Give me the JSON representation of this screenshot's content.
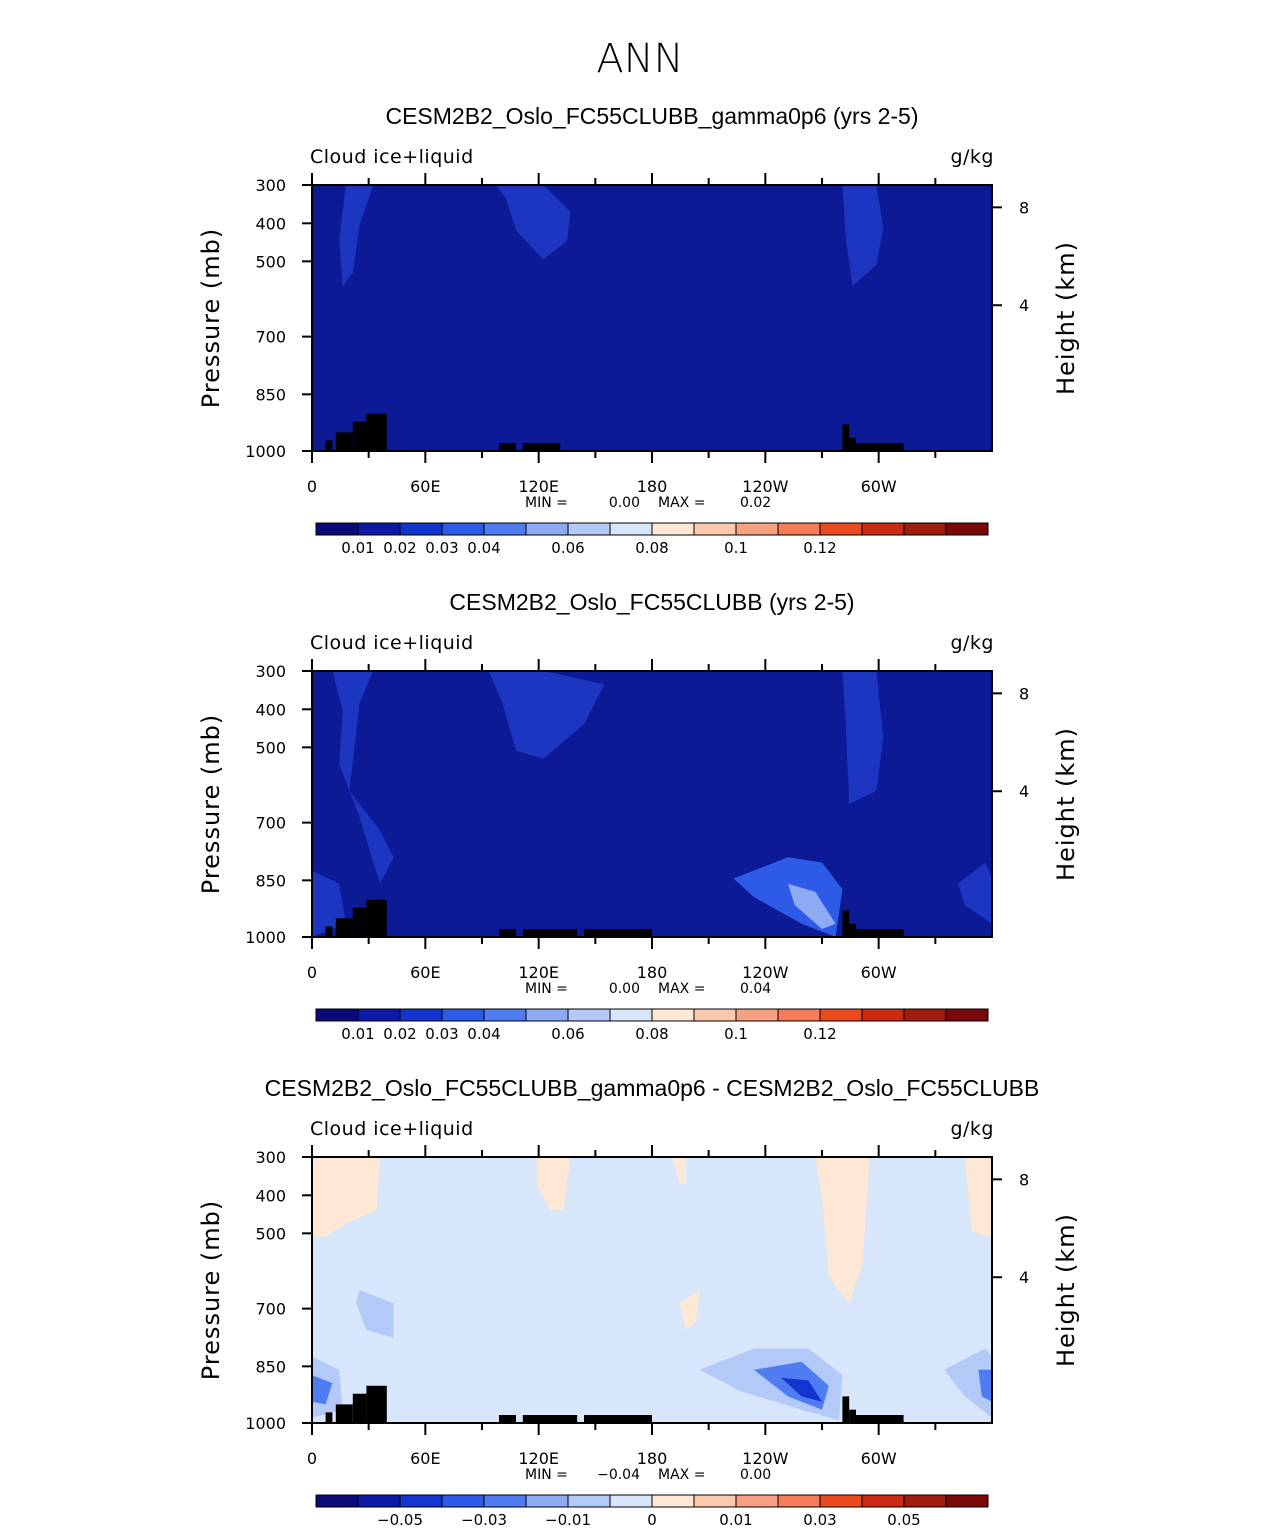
{
  "main_title": "ANN",
  "chart_data": [
    {
      "type": "heatmap",
      "title": "CESM2B2_Oslo_FC55CLUBB_gamma0p6 (yrs 2-5)",
      "variable": "Cloud ice+liquid",
      "units": "g/kg",
      "xlabel": "",
      "ylabel": "Pressure (mb)",
      "y2label": "Height (km)",
      "x_ticks": [
        "0",
        "60E",
        "120E",
        "180",
        "120W",
        "60W"
      ],
      "y_ticks": [
        "300",
        "400",
        "500",
        "700",
        "850",
        "1000"
      ],
      "y2_ticks": [
        "8",
        "4"
      ],
      "min_text": "MIN =",
      "min_value": "0.00",
      "max_text": "MAX =",
      "max_value": "0.02",
      "background_color": "#0d1a96",
      "colorbar": {
        "colors": [
          "#0a0a78",
          "#0c1aa5",
          "#1234cf",
          "#2e5ae8",
          "#4f7cf0",
          "#8eaaf2",
          "#b3c9f7",
          "#d8e6fb",
          "#fde8d6",
          "#fbc9ae",
          "#f7a183",
          "#f47c57",
          "#eb4a21",
          "#cc2a12",
          "#a01c0c",
          "#7a0a0a"
        ],
        "labels": [
          "0.01",
          "0.02",
          "0.03",
          "0.04",
          "0.06",
          "0.08",
          "0.1",
          "0.12"
        ]
      },
      "shapes": [
        {
          "color": "#1d36c2",
          "pts": [
            [
              0.05,
              0
            ],
            [
              0.09,
              0
            ],
            [
              0.07,
              0.15
            ],
            [
              0.06,
              0.33
            ],
            [
              0.045,
              0.38
            ],
            [
              0.04,
              0.2
            ]
          ]
        },
        {
          "color": "#1d36c2",
          "pts": [
            [
              0.27,
              0
            ],
            [
              0.34,
              0
            ],
            [
              0.38,
              0.1
            ],
            [
              0.375,
              0.21
            ],
            [
              0.34,
              0.28
            ],
            [
              0.3,
              0.17
            ],
            [
              0.285,
              0.05
            ]
          ]
        },
        {
          "color": "#1d36c2",
          "pts": [
            [
              0.78,
              0
            ],
            [
              0.83,
              0
            ],
            [
              0.84,
              0.16
            ],
            [
              0.83,
              0.3
            ],
            [
              0.795,
              0.38
            ],
            [
              0.785,
              0.2
            ]
          ]
        }
      ],
      "terrain": [
        [
          0.02,
          0.03,
          0.04
        ],
        [
          0.035,
          0.06,
          0.07
        ],
        [
          0.06,
          0.08,
          0.11
        ],
        [
          0.08,
          0.11,
          0.14
        ],
        [
          0.275,
          0.3,
          0.03
        ],
        [
          0.31,
          0.365,
          0.03
        ],
        [
          0.78,
          0.79,
          0.1
        ],
        [
          0.79,
          0.8,
          0.05
        ],
        [
          0.8,
          0.87,
          0.03
        ]
      ]
    },
    {
      "type": "heatmap",
      "title": "CESM2B2_Oslo_FC55CLUBB (yrs 2-5)",
      "variable": "Cloud ice+liquid",
      "units": "g/kg",
      "xlabel": "",
      "ylabel": "Pressure (mb)",
      "y2label": "Height (km)",
      "x_ticks": [
        "0",
        "60E",
        "120E",
        "180",
        "120W",
        "60W"
      ],
      "y_ticks": [
        "300",
        "400",
        "500",
        "700",
        "850",
        "1000"
      ],
      "y2_ticks": [
        "8",
        "4"
      ],
      "min_text": "MIN =",
      "min_value": "0.00",
      "max_text": "MAX =",
      "max_value": "0.04",
      "background_color": "#0d1a96",
      "colorbar": {
        "colors": [
          "#0a0a78",
          "#0c1aa5",
          "#1234cf",
          "#2e5ae8",
          "#4f7cf0",
          "#8eaaf2",
          "#b3c9f7",
          "#d8e6fb",
          "#fde8d6",
          "#fbc9ae",
          "#f7a183",
          "#f47c57",
          "#eb4a21",
          "#cc2a12",
          "#a01c0c",
          "#7a0a0a"
        ],
        "labels": [
          "0.01",
          "0.02",
          "0.03",
          "0.04",
          "0.06",
          "0.08",
          "0.1",
          "0.12"
        ]
      },
      "shapes": [
        {
          "color": "#1d36c2",
          "pts": [
            [
              0.03,
              0
            ],
            [
              0.09,
              0
            ],
            [
              0.07,
              0.12
            ],
            [
              0.055,
              0.45
            ],
            [
              0.1,
              0.6
            ],
            [
              0.12,
              0.7
            ],
            [
              0.1,
              0.8
            ],
            [
              0.07,
              0.55
            ],
            [
              0.04,
              0.35
            ],
            [
              0.045,
              0.15
            ]
          ]
        },
        {
          "color": "#1d36c2",
          "pts": [
            [
              0.26,
              0
            ],
            [
              0.34,
              0
            ],
            [
              0.43,
              0.05
            ],
            [
              0.4,
              0.2
            ],
            [
              0.34,
              0.33
            ],
            [
              0.3,
              0.3
            ],
            [
              0.28,
              0.12
            ]
          ]
        },
        {
          "color": "#1d36c2",
          "pts": [
            [
              0.78,
              0
            ],
            [
              0.83,
              0
            ],
            [
              0.84,
              0.25
            ],
            [
              0.83,
              0.45
            ],
            [
              0.79,
              0.5
            ],
            [
              0.785,
              0.2
            ]
          ]
        },
        {
          "color": "#1d36c2",
          "pts": [
            [
              0.0,
              0.75
            ],
            [
              0.04,
              0.8
            ],
            [
              0.05,
              0.95
            ],
            [
              0.0,
              1.0
            ]
          ]
        },
        {
          "color": "#2e5ae8",
          "pts": [
            [
              0.62,
              0.78
            ],
            [
              0.7,
              0.7
            ],
            [
              0.75,
              0.72
            ],
            [
              0.78,
              0.82
            ],
            [
              0.77,
              1.0
            ],
            [
              0.72,
              0.95
            ],
            [
              0.65,
              0.85
            ]
          ]
        },
        {
          "color": "#8eaaf2",
          "pts": [
            [
              0.7,
              0.8
            ],
            [
              0.74,
              0.83
            ],
            [
              0.77,
              0.95
            ],
            [
              0.75,
              0.97
            ],
            [
              0.71,
              0.88
            ]
          ]
        },
        {
          "color": "#1d36c2",
          "pts": [
            [
              0.95,
              0.8
            ],
            [
              0.99,
              0.72
            ],
            [
              1.0,
              0.78
            ],
            [
              1.0,
              0.95
            ],
            [
              0.96,
              0.88
            ]
          ]
        }
      ],
      "terrain": [
        [
          0.02,
          0.03,
          0.04
        ],
        [
          0.035,
          0.06,
          0.07
        ],
        [
          0.06,
          0.08,
          0.11
        ],
        [
          0.08,
          0.11,
          0.14
        ],
        [
          0.275,
          0.3,
          0.03
        ],
        [
          0.31,
          0.39,
          0.03
        ],
        [
          0.4,
          0.5,
          0.03
        ],
        [
          0.78,
          0.79,
          0.1
        ],
        [
          0.79,
          0.8,
          0.05
        ],
        [
          0.8,
          0.87,
          0.03
        ]
      ]
    },
    {
      "type": "heatmap",
      "title": "CESM2B2_Oslo_FC55CLUBB_gamma0p6 - CESM2B2_Oslo_FC55CLUBB",
      "variable": "Cloud ice+liquid",
      "units": "g/kg",
      "xlabel": "",
      "ylabel": "Pressure (mb)",
      "y2label": "Height (km)",
      "x_ticks": [
        "0",
        "60E",
        "120E",
        "180",
        "120W",
        "60W"
      ],
      "y_ticks": [
        "300",
        "400",
        "500",
        "700",
        "850",
        "1000"
      ],
      "y2_ticks": [
        "8",
        "4"
      ],
      "min_text": "MIN =",
      "min_value": "−0.04",
      "max_text": "MAX =",
      "max_value": "0.00",
      "background_color": "#d8e6fb",
      "colorbar": {
        "colors": [
          "#0a0a78",
          "#0c1aa5",
          "#1234cf",
          "#2e5ae8",
          "#4f7cf0",
          "#8eaaf2",
          "#b3c9f7",
          "#d8e6fb",
          "#fde8d6",
          "#fbc9ae",
          "#f7a183",
          "#f47c57",
          "#eb4a21",
          "#cc2a12",
          "#a01c0c",
          "#7a0a0a"
        ],
        "labels": [
          "−0.05",
          "−0.03",
          "−0.01",
          "0",
          "0.01",
          "0.03",
          "0.05"
        ]
      },
      "shapes": [
        {
          "color": "#fde8d6",
          "pts": [
            [
              0,
              0
            ],
            [
              0.1,
              0
            ],
            [
              0.095,
              0.2
            ],
            [
              0.05,
              0.25
            ],
            [
              0.02,
              0.3
            ],
            [
              0.0,
              0.3
            ]
          ]
        },
        {
          "color": "#fde8d6",
          "pts": [
            [
              0.33,
              0
            ],
            [
              0.38,
              0
            ],
            [
              0.37,
              0.2
            ],
            [
              0.35,
              0.2
            ],
            [
              0.33,
              0.1
            ]
          ]
        },
        {
          "color": "#fde8d6",
          "pts": [
            [
              0.74,
              0
            ],
            [
              0.82,
              0
            ],
            [
              0.81,
              0.4
            ],
            [
              0.79,
              0.55
            ],
            [
              0.76,
              0.45
            ],
            [
              0.75,
              0.15
            ]
          ]
        },
        {
          "color": "#fde8d6",
          "pts": [
            [
              0.96,
              0
            ],
            [
              1.0,
              0
            ],
            [
              1.0,
              0.3
            ],
            [
              0.97,
              0.28
            ]
          ]
        },
        {
          "color": "#fde8d6",
          "pts": [
            [
              0.53,
              0
            ],
            [
              0.55,
              0
            ],
            [
              0.55,
              0.1
            ],
            [
              0.54,
              0.1
            ]
          ]
        },
        {
          "color": "#fde8d6",
          "pts": [
            [
              0.54,
              0.55
            ],
            [
              0.57,
              0.5
            ],
            [
              0.565,
              0.62
            ],
            [
              0.55,
              0.65
            ]
          ]
        },
        {
          "color": "#b3c9f7",
          "pts": [
            [
              0.07,
              0.5
            ],
            [
              0.12,
              0.55
            ],
            [
              0.12,
              0.68
            ],
            [
              0.08,
              0.65
            ],
            [
              0.065,
              0.55
            ]
          ]
        },
        {
          "color": "#b3c9f7",
          "pts": [
            [
              0.0,
              0.75
            ],
            [
              0.04,
              0.8
            ],
            [
              0.045,
              0.95
            ],
            [
              0.0,
              0.98
            ]
          ]
        },
        {
          "color": "#4f7cf0",
          "pts": [
            [
              0.0,
              0.82
            ],
            [
              0.03,
              0.85
            ],
            [
              0.02,
              0.93
            ],
            [
              0.0,
              0.92
            ]
          ]
        },
        {
          "color": "#b3c9f7",
          "pts": [
            [
              0.57,
              0.8
            ],
            [
              0.65,
              0.72
            ],
            [
              0.73,
              0.72
            ],
            [
              0.78,
              0.82
            ],
            [
              0.775,
              0.99
            ],
            [
              0.72,
              0.95
            ],
            [
              0.63,
              0.88
            ]
          ]
        },
        {
          "color": "#4f7cf0",
          "pts": [
            [
              0.65,
              0.8
            ],
            [
              0.72,
              0.77
            ],
            [
              0.76,
              0.86
            ],
            [
              0.75,
              0.95
            ],
            [
              0.7,
              0.9
            ]
          ]
        },
        {
          "color": "#1234cf",
          "pts": [
            [
              0.69,
              0.83
            ],
            [
              0.73,
              0.84
            ],
            [
              0.75,
              0.92
            ],
            [
              0.72,
              0.9
            ]
          ]
        },
        {
          "color": "#b3c9f7",
          "pts": [
            [
              0.93,
              0.8
            ],
            [
              0.99,
              0.72
            ],
            [
              1.0,
              0.75
            ],
            [
              1.0,
              0.98
            ],
            [
              0.96,
              0.9
            ]
          ]
        },
        {
          "color": "#4f7cf0",
          "pts": [
            [
              0.98,
              0.8
            ],
            [
              1.0,
              0.8
            ],
            [
              1.0,
              0.92
            ],
            [
              0.985,
              0.9
            ]
          ]
        }
      ],
      "terrain": [
        [
          0.02,
          0.03,
          0.04
        ],
        [
          0.035,
          0.06,
          0.07
        ],
        [
          0.06,
          0.08,
          0.11
        ],
        [
          0.08,
          0.11,
          0.14
        ],
        [
          0.275,
          0.3,
          0.03
        ],
        [
          0.31,
          0.39,
          0.03
        ],
        [
          0.4,
          0.5,
          0.03
        ],
        [
          0.78,
          0.79,
          0.1
        ],
        [
          0.79,
          0.8,
          0.05
        ],
        [
          0.8,
          0.87,
          0.03
        ]
      ]
    }
  ]
}
